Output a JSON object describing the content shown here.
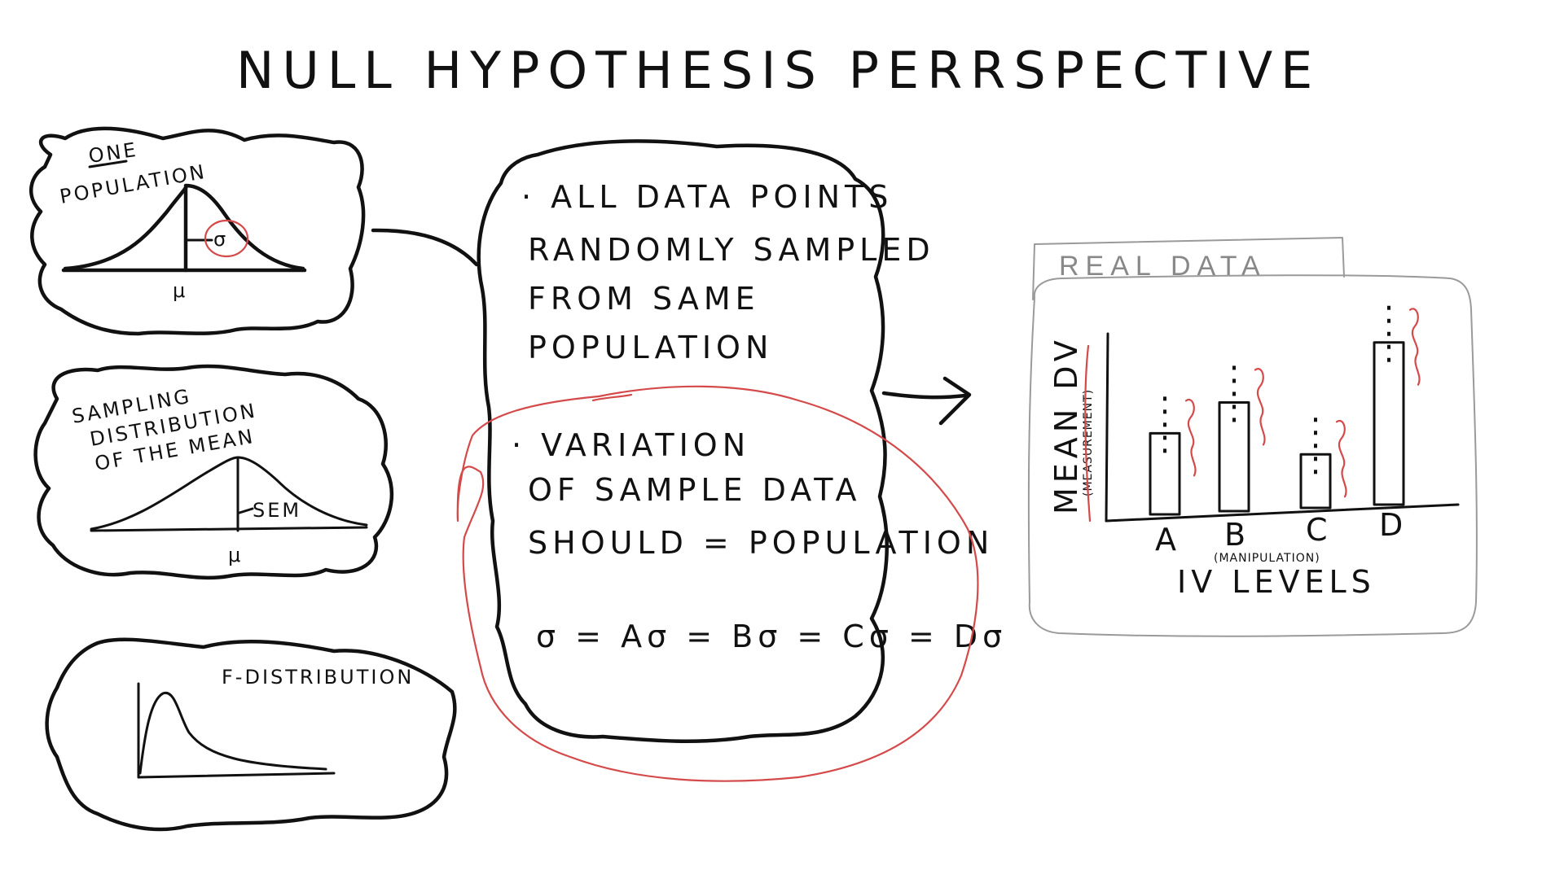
{
  "title": "NULL HYPOTHESIS PERRSPECTIVE",
  "population_panel": {
    "qualifier": "ONE",
    "label": "POPULATION",
    "mu_label": "μ",
    "sigma_label": "σ"
  },
  "sampling_panel": {
    "label_line1": "SAMPLING",
    "label_line2": "DISTRIBUTION",
    "label_line3": "OF THE MEAN",
    "sem_label": "SEM",
    "mu_label": "μ"
  },
  "f_panel": {
    "label": "F-DISTRIBUTION"
  },
  "center_bubble": {
    "point1_line1": "· ALL DATA POINTS",
    "point1_line2": "RANDOMLY SAMPLED",
    "point1_line3": "FROM SAME",
    "point1_line4": "POPULATION",
    "point2_line1": "· VARIATION",
    "point2_line2": "OF SAMPLE DATA",
    "point2_line3": "SHOULD = POPULATION",
    "equation": "σ = Aσ = Bσ = Cσ = Dσ"
  },
  "real_data_panel": {
    "tab_label": "REAL DATA",
    "y_label": "MEAN DV",
    "y_sublabel": "(MEASUREMENT)",
    "x_sublabel": "(MANIPULATION)",
    "x_label": "IV LEVELS",
    "chart_data": {
      "type": "bar",
      "categories": [
        "A",
        "B",
        "C",
        "D"
      ],
      "values": [
        0.47,
        0.63,
        0.31,
        0.94
      ],
      "xlabel": "IV LEVELS",
      "ylabel": "MEAN DV",
      "grid": false
    }
  },
  "colors": {
    "ink": "#111111",
    "annotation": "#d44a4a",
    "frame": "#9a9a9a"
  }
}
